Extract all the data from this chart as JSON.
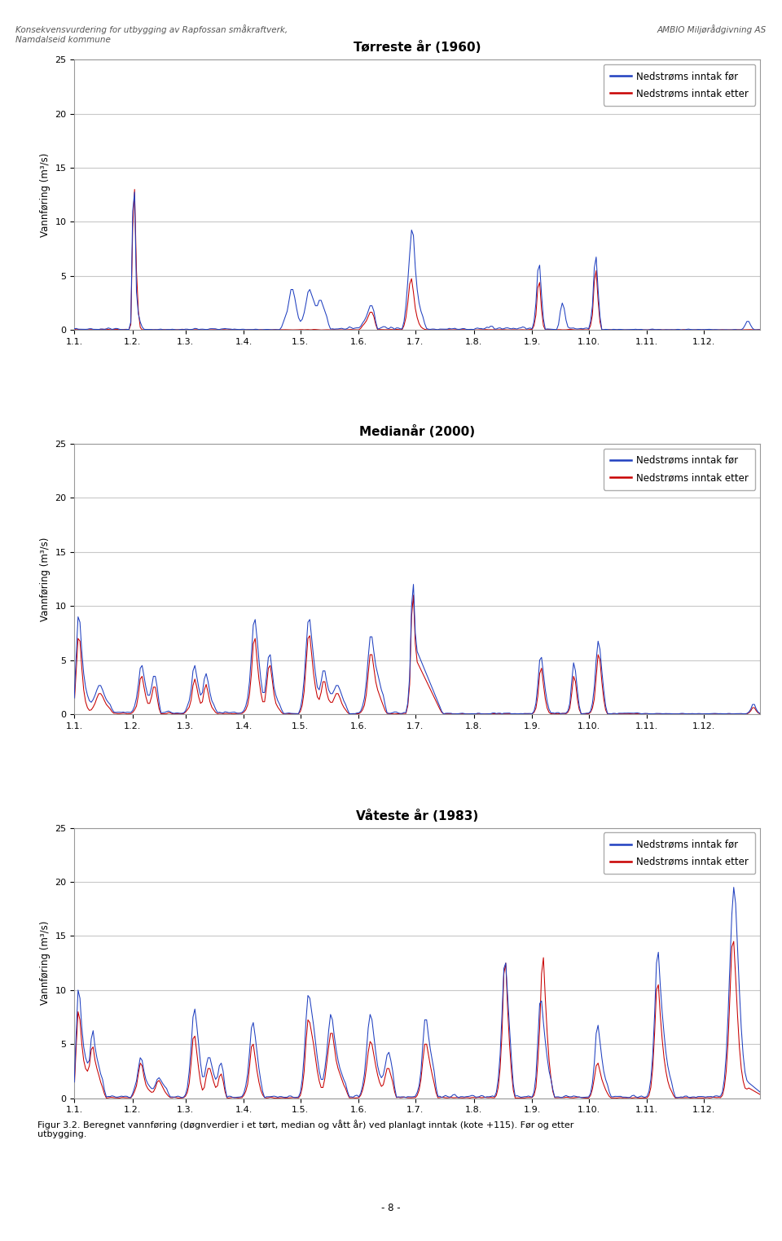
{
  "header_left": "Konsekvensvurdering for utbygging av Rapfossan småkraftverk,\nNamdalseid kommune",
  "header_right": "AMBIO Miljørådgivning AS",
  "footer_text": "Figur 3.2. Beregnet vannføring (døgnverdier i et tørt, median og vått år) ved planlagt inntak (kote +115). Før og etter\nutbygging.",
  "page_number": "- 8 -",
  "plots": [
    {
      "title": "Tørreste år (1960)",
      "ylim": [
        0,
        25
      ],
      "yticks": [
        0,
        5,
        10,
        15,
        20,
        25
      ]
    },
    {
      "title": "Medianår (2000)",
      "ylim": [
        0,
        25
      ],
      "yticks": [
        0,
        5,
        10,
        15,
        20,
        25
      ]
    },
    {
      "title": "Våteste år (1983)",
      "ylim": [
        0,
        25
      ],
      "yticks": [
        0,
        5,
        10,
        15,
        20,
        25
      ]
    }
  ],
  "xtick_labels": [
    "1.1.",
    "1.2.",
    "1.3.",
    "1.4.",
    "1.5.",
    "1.6.",
    "1.7.",
    "1.8.",
    "1.9.",
    "1.10.",
    "1.11.",
    "1.12."
  ],
  "ylabel": "Vannføring (m³/s)",
  "color_blue": "#2040C0",
  "color_red": "#C80000",
  "legend_label_blue": "Nedstrøms inntak før",
  "legend_label_red": "Nedstrøms inntak etter",
  "bg_color": "#ffffff",
  "plot_bg_color": "#ffffff",
  "grid_color": "#c8c8c8"
}
